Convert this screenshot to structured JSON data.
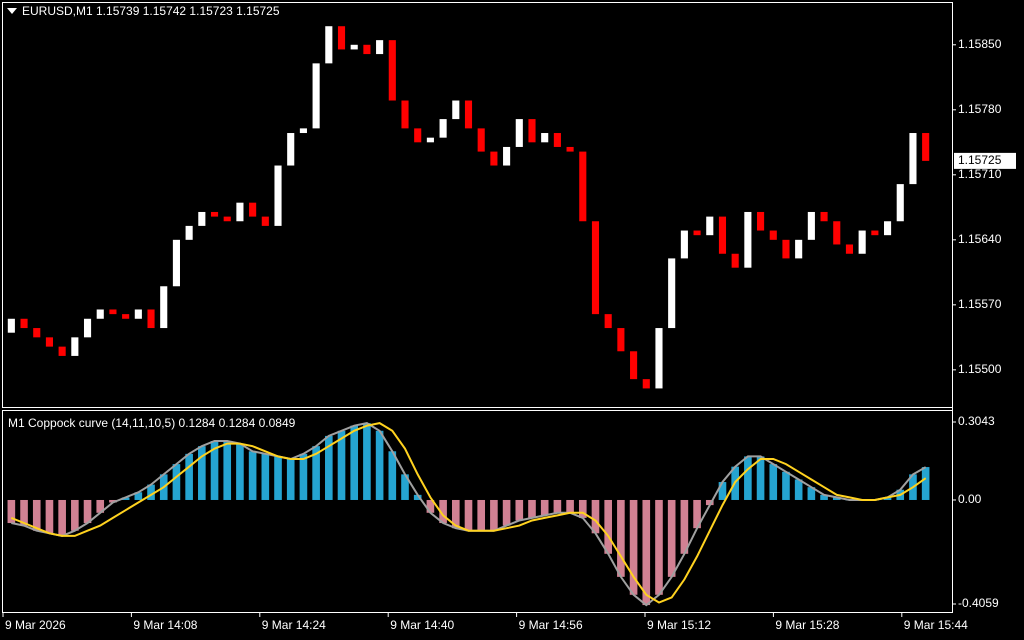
{
  "chart_data": [
    {
      "type": "candlestick",
      "title": "EURUSD,M1  1.15739 1.15742 1.15723 1.15725",
      "open": [
        1.1554,
        1.15555,
        1.15545,
        1.15535,
        1.15525,
        1.15515,
        1.15535,
        1.15555,
        1.15565,
        1.1556,
        1.15555,
        1.15565,
        1.15545,
        1.1559,
        1.1564,
        1.15655,
        1.1567,
        1.15665,
        1.1566,
        1.1568,
        1.15665,
        1.15655,
        1.1572,
        1.15755,
        1.1576,
        1.1583,
        1.1587,
        1.15845,
        1.1585,
        1.1584,
        1.15855,
        1.1579,
        1.1576,
        1.15745,
        1.1575,
        1.1577,
        1.1579,
        1.1576,
        1.15735,
        1.1572,
        1.1574,
        1.1577,
        1.15745,
        1.15755,
        1.1574,
        1.15735,
        1.1566,
        1.1556,
        1.15545,
        1.1552,
        1.1549,
        1.1548,
        1.15545,
        1.1562,
        1.1565,
        1.15645,
        1.15665,
        1.15625,
        1.1561,
        1.1567,
        1.1565,
        1.1564,
        1.1562,
        1.1564,
        1.1567,
        1.1566,
        1.15635,
        1.15625,
        1.1565,
        1.15645,
        1.1566,
        1.157,
        1.15755
      ],
      "close": [
        1.15555,
        1.15545,
        1.15535,
        1.15525,
        1.15515,
        1.15535,
        1.15555,
        1.15565,
        1.1556,
        1.15555,
        1.15565,
        1.15545,
        1.1559,
        1.1564,
        1.15655,
        1.1567,
        1.15665,
        1.1566,
        1.1568,
        1.15665,
        1.15655,
        1.1572,
        1.15755,
        1.1576,
        1.1583,
        1.1587,
        1.15845,
        1.1585,
        1.1584,
        1.15855,
        1.1579,
        1.1576,
        1.15745,
        1.1575,
        1.1577,
        1.1579,
        1.1576,
        1.15735,
        1.1572,
        1.1574,
        1.1577,
        1.15745,
        1.15755,
        1.1574,
        1.15735,
        1.1566,
        1.1556,
        1.15545,
        1.1552,
        1.1549,
        1.1548,
        1.15545,
        1.1562,
        1.1565,
        1.15645,
        1.15665,
        1.15625,
        1.1561,
        1.1567,
        1.1565,
        1.1564,
        1.1562,
        1.1564,
        1.1567,
        1.1566,
        1.15635,
        1.15625,
        1.1565,
        1.15645,
        1.1566,
        1.157,
        1.15755,
        1.15725
      ],
      "up_color": "#ffffff",
      "down_color": "#ff0000",
      "ylim": [
        1.1546,
        1.15895
      ],
      "yticks": [
        {
          "value": 1.1585,
          "label": "1.15850"
        },
        {
          "value": 1.1578,
          "label": "1.15780"
        },
        {
          "value": 1.1571,
          "label": "1.15710"
        },
        {
          "value": 1.1564,
          "label": "1.15640"
        },
        {
          "value": 1.1557,
          "label": "1.15570"
        },
        {
          "value": 1.155,
          "label": "1.15500"
        }
      ],
      "last_price": {
        "value": 1.15725,
        "label": "1.15725"
      }
    },
    {
      "type": "bar",
      "title": "M1 Coppock curve  (14,11,10,5) 0.1284 0.1284 0.0849",
      "up_color": "#29b6e8",
      "down_color": "#e88fa3",
      "series": [
        {
          "color": "#a0a0a0",
          "values": [
            -0.09,
            -0.1,
            -0.12,
            -0.13,
            -0.14,
            -0.12,
            -0.09,
            -0.05,
            -0.01,
            0.01,
            0.03,
            0.06,
            0.1,
            0.14,
            0.18,
            0.21,
            0.23,
            0.23,
            0.22,
            0.19,
            0.18,
            0.17,
            0.16,
            0.18,
            0.21,
            0.25,
            0.27,
            0.29,
            0.3,
            0.27,
            0.19,
            0.1,
            0.02,
            -0.05,
            -0.09,
            -0.11,
            -0.12,
            -0.12,
            -0.12,
            -0.1,
            -0.08,
            -0.07,
            -0.06,
            -0.05,
            -0.05,
            -0.07,
            -0.13,
            -0.21,
            -0.3,
            -0.37,
            -0.41,
            -0.37,
            -0.3,
            -0.21,
            -0.11,
            -0.02,
            0.07,
            0.13,
            0.17,
            0.17,
            0.14,
            0.11,
            0.08,
            0.05,
            0.02,
            0.01,
            0.0,
            0.0,
            0.0,
            0.01,
            0.04,
            0.1,
            0.1284
          ]
        },
        {
          "color": "#ffd21f",
          "values": [
            -0.07,
            -0.09,
            -0.11,
            -0.13,
            -0.14,
            -0.14,
            -0.12,
            -0.1,
            -0.07,
            -0.04,
            -0.01,
            0.02,
            0.05,
            0.09,
            0.13,
            0.17,
            0.2,
            0.22,
            0.22,
            0.21,
            0.19,
            0.17,
            0.16,
            0.16,
            0.18,
            0.21,
            0.24,
            0.27,
            0.29,
            0.3,
            0.27,
            0.2,
            0.1,
            0.01,
            -0.06,
            -0.1,
            -0.12,
            -0.12,
            -0.12,
            -0.11,
            -0.1,
            -0.08,
            -0.07,
            -0.06,
            -0.05,
            -0.05,
            -0.08,
            -0.14,
            -0.22,
            -0.3,
            -0.37,
            -0.4,
            -0.38,
            -0.31,
            -0.22,
            -0.12,
            -0.02,
            0.07,
            0.12,
            0.16,
            0.16,
            0.14,
            0.11,
            0.08,
            0.05,
            0.02,
            0.01,
            0.0,
            0.0,
            0.01,
            0.02,
            0.05,
            0.0849
          ]
        }
      ],
      "ylim": [
        -0.4371,
        0.3472
      ],
      "yticks": [
        0.3043,
        {
          "value": 0,
          "label": "0.00"
        },
        -0.4059
      ],
      "x_labels": [
        "9 Mar 2026",
        "9 Mar 14:08",
        "9 Mar 14:24",
        "9 Mar 14:40",
        "9 Mar 14:56",
        "9 Mar 15:12",
        "9 Mar 15:28",
        "9 Mar 15:44"
      ]
    }
  ]
}
